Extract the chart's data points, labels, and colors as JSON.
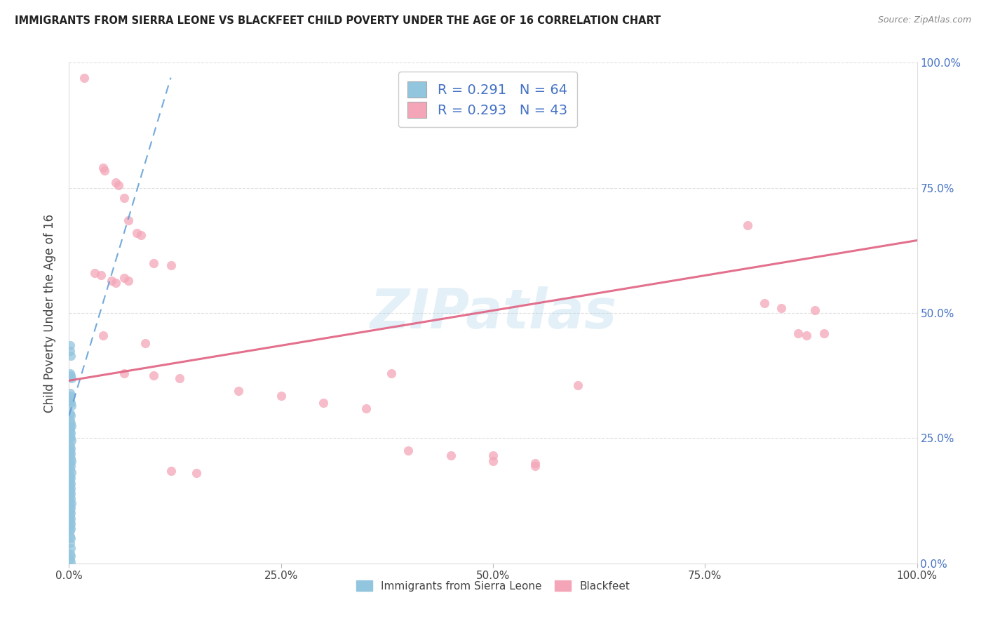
{
  "title": "IMMIGRANTS FROM SIERRA LEONE VS BLACKFEET CHILD POVERTY UNDER THE AGE OF 16 CORRELATION CHART",
  "source": "Source: ZipAtlas.com",
  "ylabel": "Child Poverty Under the Age of 16",
  "watermark": "ZIPatlas",
  "blue_color": "#92c5de",
  "pink_color": "#f4a6b8",
  "blue_line_color": "#5b9bd5",
  "pink_line_color": "#e06080",
  "blue_scatter_x": [
    0.001,
    0.001,
    0.002,
    0.001,
    0.002,
    0.003,
    0.001,
    0.002,
    0.001,
    0.002,
    0.003,
    0.001,
    0.002,
    0.001,
    0.002,
    0.003,
    0.001,
    0.001,
    0.002,
    0.001,
    0.002,
    0.003,
    0.001,
    0.002,
    0.001,
    0.002,
    0.001,
    0.002,
    0.003,
    0.001,
    0.002,
    0.001,
    0.003,
    0.001,
    0.002,
    0.001,
    0.002,
    0.001,
    0.002,
    0.001,
    0.002,
    0.001,
    0.002,
    0.001,
    0.003,
    0.001,
    0.002,
    0.001,
    0.002,
    0.001,
    0.002,
    0.001,
    0.002,
    0.001,
    0.002,
    0.001,
    0.001,
    0.002,
    0.001,
    0.002,
    0.001,
    0.002,
    0.001,
    0.002
  ],
  "blue_scatter_y": [
    0.435,
    0.425,
    0.415,
    0.38,
    0.375,
    0.37,
    0.34,
    0.335,
    0.325,
    0.32,
    0.315,
    0.3,
    0.295,
    0.285,
    0.28,
    0.275,
    0.27,
    0.265,
    0.26,
    0.255,
    0.25,
    0.245,
    0.235,
    0.23,
    0.225,
    0.22,
    0.215,
    0.21,
    0.205,
    0.2,
    0.195,
    0.188,
    0.182,
    0.175,
    0.17,
    0.165,
    0.16,
    0.155,
    0.15,
    0.145,
    0.14,
    0.135,
    0.13,
    0.125,
    0.12,
    0.115,
    0.11,
    0.105,
    0.1,
    0.095,
    0.09,
    0.085,
    0.08,
    0.075,
    0.07,
    0.065,
    0.055,
    0.05,
    0.04,
    0.03,
    0.02,
    0.015,
    0.008,
    0.002
  ],
  "pink_scatter_x": [
    0.018,
    0.04,
    0.042,
    0.055,
    0.058,
    0.065,
    0.07,
    0.08,
    0.085,
    0.1,
    0.12,
    0.03,
    0.038,
    0.05,
    0.055,
    0.065,
    0.07,
    0.04,
    0.09,
    0.065,
    0.1,
    0.13,
    0.38,
    0.5,
    0.55,
    0.6,
    0.8,
    0.82,
    0.84,
    0.86,
    0.87,
    0.88,
    0.89,
    0.2,
    0.25,
    0.3,
    0.35,
    0.4,
    0.45,
    0.5,
    0.55,
    0.12,
    0.15
  ],
  "pink_scatter_y": [
    0.97,
    0.79,
    0.785,
    0.76,
    0.755,
    0.73,
    0.685,
    0.66,
    0.655,
    0.6,
    0.595,
    0.58,
    0.575,
    0.565,
    0.56,
    0.57,
    0.565,
    0.455,
    0.44,
    0.38,
    0.375,
    0.37,
    0.38,
    0.215,
    0.2,
    0.355,
    0.675,
    0.52,
    0.51,
    0.46,
    0.455,
    0.505,
    0.46,
    0.345,
    0.335,
    0.32,
    0.31,
    0.225,
    0.215,
    0.205,
    0.195,
    0.185,
    0.18
  ],
  "blue_trend_x": [
    0.0,
    0.12
  ],
  "blue_trend_y": [
    0.295,
    0.97
  ],
  "pink_trend_x": [
    0.0,
    1.0
  ],
  "pink_trend_y": [
    0.365,
    0.645
  ],
  "xticks": [
    0.0,
    0.25,
    0.5,
    0.75,
    1.0
  ],
  "yticks": [
    0.0,
    0.25,
    0.5,
    0.75,
    1.0
  ],
  "xtick_labels": [
    "0.0%",
    "25.0%",
    "50.0%",
    "75.0%",
    "100.0%"
  ],
  "ytick_labels": [
    "0.0%",
    "25.0%",
    "50.0%",
    "75.0%",
    "100.0%"
  ]
}
